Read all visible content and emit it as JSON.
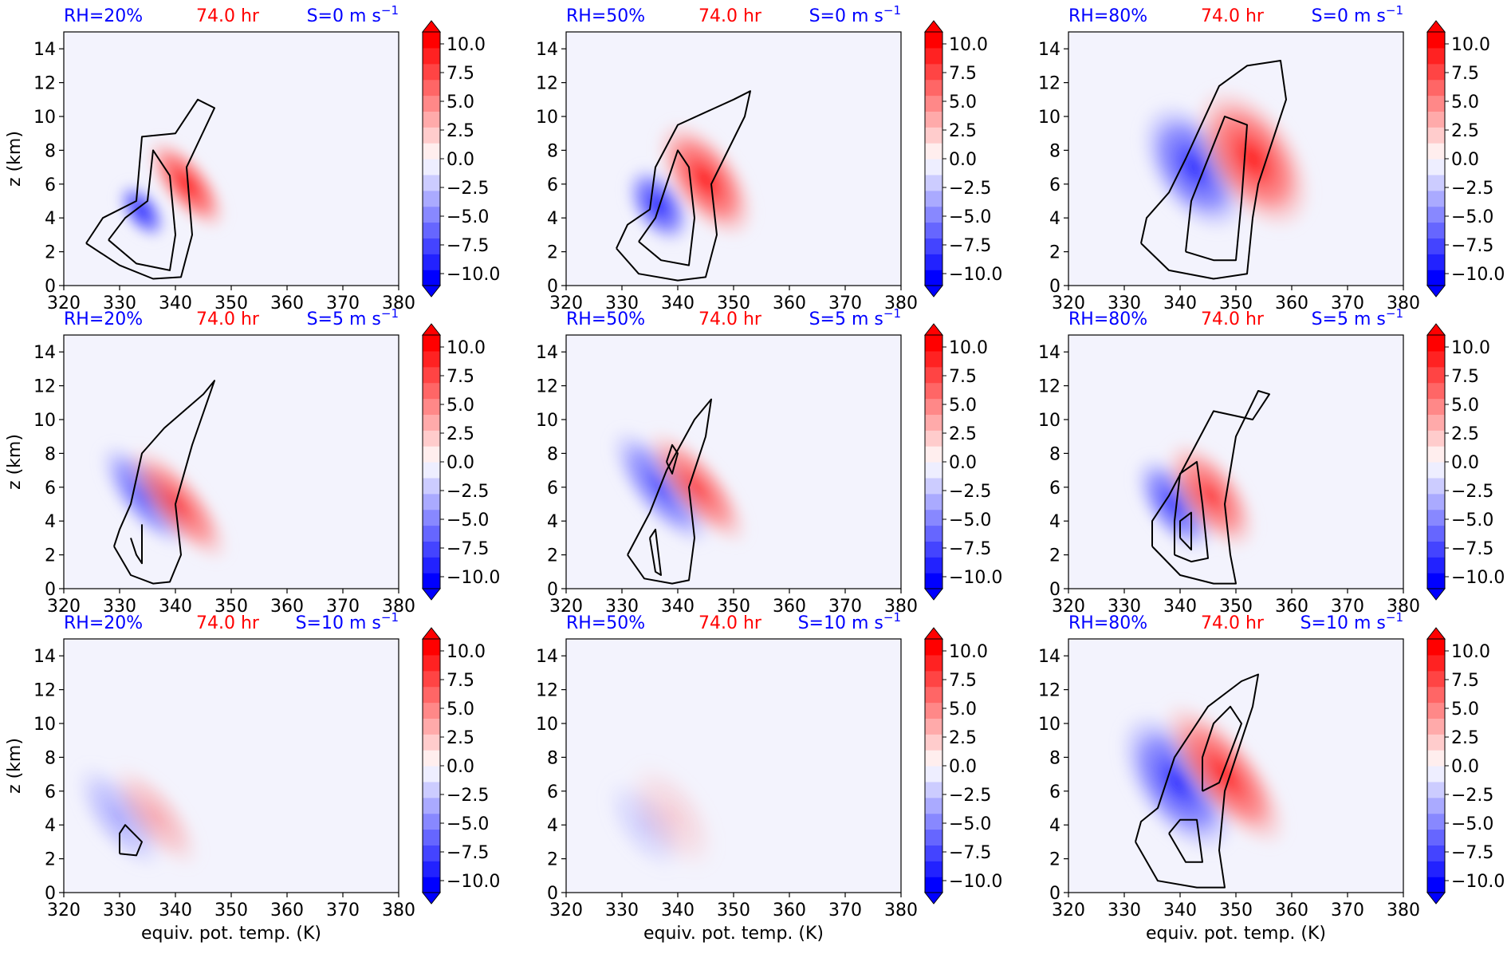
{
  "figure": {
    "time_label": "74.0 hr",
    "xlabel": "equiv. pot. temp. (K)",
    "ylabel": "z (km)",
    "colors": {
      "rh": "#0000ff",
      "time": "#ff0000",
      "shear": "#0000ff",
      "contour": "#000000",
      "background": "#f3f3fd"
    }
  },
  "colorbar": {
    "ticks": [
      "10.0",
      "7.5",
      "5.0",
      "2.5",
      "0.0",
      "−2.5",
      "−5.0",
      "−7.5",
      "−10.0"
    ],
    "range": [
      -10,
      10
    ],
    "extend": "both",
    "colormap": "bwr"
  },
  "chart_data": [
    {
      "type": "heatmap",
      "rh": "RH=20%",
      "shear": "S=0 m s",
      "shear_sup": "−1",
      "xlim": [
        320,
        380
      ],
      "ylim": [
        0,
        15
      ],
      "xticks": [
        320,
        330,
        340,
        350,
        360,
        370,
        380
      ],
      "yticks": [
        0,
        2,
        4,
        6,
        8,
        10,
        12,
        14
      ],
      "show_ylabel": true,
      "show_xlabel": false,
      "neg_blob": {
        "theta": [
          332,
          336
        ],
        "z": [
          2.8,
          6
        ],
        "strength": 0.95
      },
      "pos_blob": {
        "theta": [
          339,
          345
        ],
        "z": [
          3,
          9
        ],
        "strength": 1.0
      },
      "contours": [
        [
          [
            324,
            2.5
          ],
          [
            330,
            1.2
          ],
          [
            336,
            0.4
          ],
          [
            341,
            0.5
          ],
          [
            343,
            3
          ],
          [
            342,
            7
          ],
          [
            347,
            10.5
          ],
          [
            344,
            11
          ],
          [
            340,
            9
          ],
          [
            334,
            8.8
          ],
          [
            333,
            5
          ],
          [
            327,
            4
          ],
          [
            324,
            2.5
          ]
        ],
        [
          [
            328,
            2.7
          ],
          [
            333,
            1.3
          ],
          [
            339,
            0.9
          ],
          [
            340,
            3
          ],
          [
            339,
            6.5
          ],
          [
            336,
            8
          ],
          [
            335,
            5
          ],
          [
            331,
            4
          ],
          [
            328,
            2.7
          ]
        ]
      ]
    },
    {
      "type": "heatmap",
      "rh": "RH=50%",
      "shear": "S=0 m s",
      "shear_sup": "−1",
      "xlim": [
        320,
        380
      ],
      "ylim": [
        0,
        15
      ],
      "xticks": [
        320,
        330,
        340,
        350,
        360,
        370,
        380
      ],
      "yticks": [
        0,
        2,
        4,
        6,
        8,
        10,
        12,
        14
      ],
      "show_ylabel": false,
      "show_xlabel": false,
      "neg_blob": {
        "theta": [
          333,
          340
        ],
        "z": [
          2.5,
          7
        ],
        "strength": 0.95
      },
      "pos_blob": {
        "theta": [
          340,
          350
        ],
        "z": [
          2.5,
          10
        ],
        "strength": 1.0
      },
      "contours": [
        [
          [
            329,
            2.2
          ],
          [
            333,
            0.7
          ],
          [
            340,
            0.3
          ],
          [
            345,
            0.5
          ],
          [
            347,
            3
          ],
          [
            346,
            6
          ],
          [
            352,
            10
          ],
          [
            353,
            11.5
          ],
          [
            350,
            11
          ],
          [
            346,
            10.4
          ],
          [
            340,
            9.5
          ],
          [
            336,
            7
          ],
          [
            335,
            4.5
          ],
          [
            331,
            3.6
          ],
          [
            329,
            2.2
          ]
        ],
        [
          [
            333,
            2.6
          ],
          [
            337,
            1.5
          ],
          [
            342,
            1.2
          ],
          [
            343,
            4
          ],
          [
            342,
            7
          ],
          [
            340,
            8
          ],
          [
            338,
            6
          ],
          [
            336,
            4
          ],
          [
            333,
            2.6
          ]
        ]
      ]
    },
    {
      "type": "heatmap",
      "rh": "RH=80%",
      "shear": "S=0 m s",
      "shear_sup": "−1",
      "xlim": [
        320,
        380
      ],
      "ylim": [
        0,
        15
      ],
      "xticks": [
        320,
        330,
        340,
        350,
        360,
        370,
        380
      ],
      "yticks": [
        0,
        2,
        4,
        6,
        8,
        10,
        12,
        14
      ],
      "show_ylabel": false,
      "show_xlabel": false,
      "neg_blob": {
        "theta": [
          336,
          349
        ],
        "z": [
          3,
          11
        ],
        "strength": 0.9
      },
      "pos_blob": {
        "theta": [
          346,
          360
        ],
        "z": [
          3,
          12
        ],
        "strength": 1.0
      },
      "contours": [
        [
          [
            333,
            2.5
          ],
          [
            338,
            0.9
          ],
          [
            346,
            0.4
          ],
          [
            352,
            0.7
          ],
          [
            353,
            4
          ],
          [
            354,
            6
          ],
          [
            359,
            11
          ],
          [
            358,
            13.3
          ],
          [
            352,
            13
          ],
          [
            347,
            11.8
          ],
          [
            341,
            7.5
          ],
          [
            338,
            5.5
          ],
          [
            334,
            4
          ],
          [
            333,
            2.5
          ]
        ],
        [
          [
            341,
            2
          ],
          [
            346,
            1.5
          ],
          [
            350,
            1.5
          ],
          [
            351,
            5
          ],
          [
            352,
            9.5
          ],
          [
            348,
            10
          ],
          [
            345,
            7.5
          ],
          [
            342,
            5
          ],
          [
            341,
            2
          ]
        ]
      ]
    },
    {
      "type": "heatmap",
      "rh": "RH=20%",
      "shear": "S=5 m s",
      "shear_sup": "−1",
      "xlim": [
        320,
        380
      ],
      "ylim": [
        0,
        15
      ],
      "xticks": [
        320,
        330,
        340,
        350,
        360,
        370,
        380
      ],
      "yticks": [
        0,
        2,
        4,
        6,
        8,
        10,
        12,
        14
      ],
      "show_ylabel": true,
      "show_xlabel": false,
      "neg_blob": {
        "theta": [
          331,
          338
        ],
        "z": [
          2,
          9
        ],
        "strength": 0.75
      },
      "pos_blob": {
        "theta": [
          337,
          344
        ],
        "z": [
          1,
          9
        ],
        "strength": 0.8
      },
      "contours": [
        [
          [
            329,
            2.5
          ],
          [
            332,
            0.8
          ],
          [
            336,
            0.3
          ],
          [
            339,
            0.4
          ],
          [
            341,
            2
          ],
          [
            340,
            5
          ],
          [
            343,
            8.5
          ],
          [
            347,
            12.3
          ],
          [
            345,
            11.5
          ],
          [
            338,
            9.5
          ],
          [
            334,
            8
          ],
          [
            332,
            5
          ],
          [
            330,
            3.5
          ],
          [
            329,
            2.5
          ]
        ],
        [
          [
            332,
            3
          ],
          [
            333,
            2
          ],
          [
            334,
            1.5
          ],
          [
            334,
            3.8
          ]
        ]
      ]
    },
    {
      "type": "heatmap",
      "rh": "RH=50%",
      "shear": "S=5 m s",
      "shear_sup": "−1",
      "xlim": [
        320,
        380
      ],
      "ylim": [
        0,
        15
      ],
      "xticks": [
        320,
        330,
        340,
        350,
        360,
        370,
        380
      ],
      "yticks": [
        0,
        2,
        4,
        6,
        8,
        10,
        12,
        14
      ],
      "show_ylabel": false,
      "show_xlabel": false,
      "neg_blob": {
        "theta": [
          333,
          341
        ],
        "z": [
          2,
          10
        ],
        "strength": 0.75
      },
      "pos_blob": {
        "theta": [
          340,
          347
        ],
        "z": [
          2,
          10
        ],
        "strength": 0.8
      },
      "contours": [
        [
          [
            331,
            2
          ],
          [
            334,
            0.6
          ],
          [
            339,
            0.3
          ],
          [
            342,
            0.5
          ],
          [
            343,
            3
          ],
          [
            342,
            6
          ],
          [
            345,
            9
          ],
          [
            346,
            11.2
          ],
          [
            343,
            10
          ],
          [
            338,
            7
          ],
          [
            335,
            4.5
          ],
          [
            331,
            2
          ]
        ],
        [
          [
            338,
            7.5
          ],
          [
            339,
            8.5
          ],
          [
            340,
            8
          ],
          [
            339,
            6.8
          ],
          [
            338,
            7.5
          ]
        ],
        [
          [
            335,
            3
          ],
          [
            336,
            1
          ],
          [
            337,
            0.8
          ],
          [
            336,
            3.5
          ],
          [
            335,
            3
          ]
        ]
      ]
    },
    {
      "type": "heatmap",
      "rh": "RH=80%",
      "shear": "S=5 m s",
      "shear_sup": "−1",
      "xlim": [
        320,
        380
      ],
      "ylim": [
        0,
        15
      ],
      "xticks": [
        320,
        330,
        340,
        350,
        360,
        370,
        380
      ],
      "yticks": [
        0,
        2,
        4,
        6,
        8,
        10,
        12,
        14
      ],
      "show_ylabel": false,
      "show_xlabel": false,
      "neg_blob": {
        "theta": [
          335,
          343
        ],
        "z": [
          2,
          8
        ],
        "strength": 0.85
      },
      "pos_blob": {
        "theta": [
          341,
          350
        ],
        "z": [
          2,
          9
        ],
        "strength": 0.85
      },
      "contours": [
        [
          [
            335,
            2.5
          ],
          [
            340,
            0.8
          ],
          [
            346,
            0.3
          ],
          [
            350,
            0.3
          ],
          [
            349,
            2
          ],
          [
            348,
            5
          ],
          [
            350,
            9
          ],
          [
            354,
            11.7
          ],
          [
            356,
            11.5
          ],
          [
            353,
            10
          ],
          [
            346,
            10.5
          ],
          [
            342,
            8
          ],
          [
            338,
            5.5
          ],
          [
            335,
            4
          ],
          [
            335,
            2.5
          ]
        ],
        [
          [
            339,
            2
          ],
          [
            342,
            1.6
          ],
          [
            345,
            1.8
          ],
          [
            344,
            5
          ],
          [
            343,
            7.5
          ],
          [
            340,
            6.8
          ],
          [
            339,
            4
          ],
          [
            339,
            2
          ]
        ],
        [
          [
            340,
            3
          ],
          [
            342,
            2.3
          ],
          [
            342,
            4.5
          ],
          [
            340,
            4
          ],
          [
            340,
            3
          ]
        ]
      ]
    },
    {
      "type": "heatmap",
      "rh": "RH=20%",
      "shear": "S=10 m s",
      "shear_sup": "−1",
      "xlim": [
        320,
        380
      ],
      "ylim": [
        0,
        15
      ],
      "xticks": [
        320,
        330,
        340,
        350,
        360,
        370,
        380
      ],
      "yticks": [
        0,
        2,
        4,
        6,
        8,
        10,
        12,
        14
      ],
      "show_ylabel": true,
      "show_xlabel": true,
      "neg_blob": {
        "theta": [
          326,
          334
        ],
        "z": [
          1,
          8
        ],
        "strength": 0.35
      },
      "pos_blob": {
        "theta": [
          333,
          340
        ],
        "z": [
          1,
          8
        ],
        "strength": 0.35
      },
      "contours": [
        [
          [
            330,
            2.3
          ],
          [
            333,
            2.2
          ],
          [
            334,
            3
          ],
          [
            331,
            4
          ],
          [
            330,
            3.5
          ],
          [
            330,
            2.3
          ]
        ]
      ]
    },
    {
      "type": "heatmap",
      "rh": "RH=50%",
      "shear": "S=10 m s",
      "shear_sup": "−1",
      "xlim": [
        320,
        380
      ],
      "ylim": [
        0,
        15
      ],
      "xticks": [
        320,
        330,
        340,
        350,
        360,
        370,
        380
      ],
      "yticks": [
        0,
        2,
        4,
        6,
        8,
        10,
        12,
        14
      ],
      "show_ylabel": false,
      "show_xlabel": true,
      "neg_blob": {
        "theta": [
          330,
          338
        ],
        "z": [
          1,
          7
        ],
        "strength": 0.18
      },
      "pos_blob": {
        "theta": [
          334,
          344
        ],
        "z": [
          1,
          8
        ],
        "strength": 0.18
      },
      "contours": []
    },
    {
      "type": "heatmap",
      "rh": "RH=80%",
      "shear": "S=10 m s",
      "shear_sup": "−1",
      "xlim": [
        320,
        380
      ],
      "ylim": [
        0,
        15
      ],
      "xticks": [
        320,
        330,
        340,
        350,
        360,
        370,
        380
      ],
      "yticks": [
        0,
        2,
        4,
        6,
        8,
        10,
        12,
        14
      ],
      "show_ylabel": false,
      "show_xlabel": true,
      "neg_blob": {
        "theta": [
          333,
          346
        ],
        "z": [
          2,
          11
        ],
        "strength": 0.9
      },
      "pos_blob": {
        "theta": [
          343,
          353
        ],
        "z": [
          2,
          12
        ],
        "strength": 0.95
      },
      "contours": [
        [
          [
            332,
            3
          ],
          [
            336,
            0.7
          ],
          [
            343,
            0.3
          ],
          [
            348,
            0.3
          ],
          [
            347,
            2.5
          ],
          [
            348,
            6
          ],
          [
            353,
            11
          ],
          [
            354,
            12.9
          ],
          [
            351,
            12.5
          ],
          [
            345,
            11
          ],
          [
            339,
            8
          ],
          [
            336,
            5
          ],
          [
            333,
            4.2
          ],
          [
            332,
            3
          ]
        ],
        [
          [
            338,
            3.5
          ],
          [
            341,
            1.8
          ],
          [
            344,
            1.8
          ],
          [
            343,
            4.3
          ],
          [
            340,
            4.3
          ],
          [
            338,
            3.5
          ]
        ],
        [
          [
            344,
            6
          ],
          [
            347,
            6.5
          ],
          [
            351,
            10
          ],
          [
            349,
            11
          ],
          [
            346,
            10
          ],
          [
            344,
            8
          ],
          [
            344,
            6
          ]
        ]
      ]
    }
  ]
}
